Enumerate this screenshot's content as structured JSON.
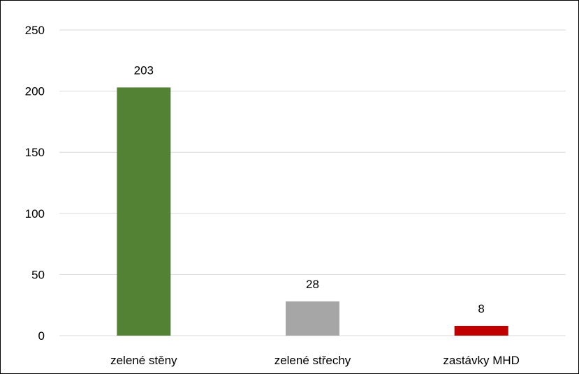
{
  "chart_data": {
    "type": "bar",
    "title": "",
    "xlabel": "",
    "ylabel": "",
    "categories": [
      "zelené stěny",
      "zelené střechy",
      "zastávky MHD"
    ],
    "values": [
      203,
      28,
      8
    ],
    "data_labels": [
      "203",
      "28",
      "8"
    ],
    "colors": [
      "#548235",
      "#a6a6a6",
      "#c00000"
    ],
    "ylim": [
      0,
      250
    ],
    "yticks": [
      0,
      50,
      100,
      150,
      200,
      250
    ],
    "ytick_labels": [
      "0",
      "50",
      "100",
      "150",
      "200",
      "250"
    ],
    "grid": true,
    "legend": "none"
  }
}
